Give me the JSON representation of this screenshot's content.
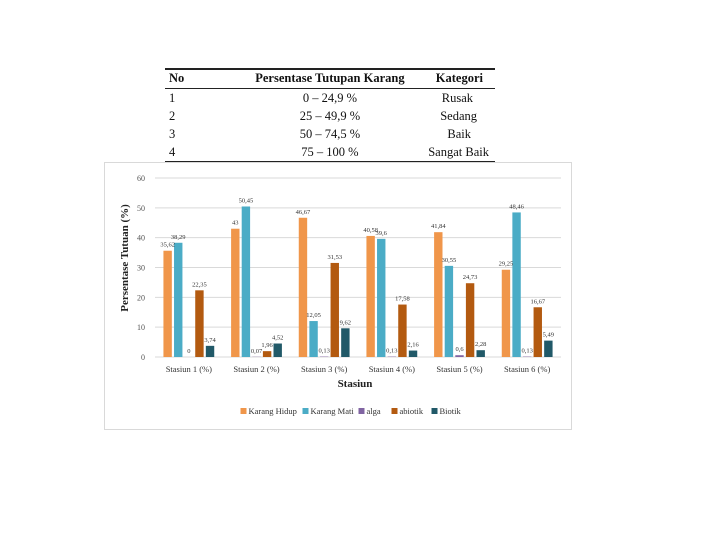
{
  "table": {
    "headers": [
      "No",
      "Persentase Tutupan Karang",
      "Kategori"
    ],
    "rows": [
      [
        "1",
        "0 – 24,9 %",
        "Rusak"
      ],
      [
        "2",
        "25 – 49,9 %",
        "Sedang"
      ],
      [
        "3",
        "50 – 74,5 %",
        "Baik"
      ],
      [
        "4",
        "75 – 100 %",
        "Sangat Baik"
      ]
    ]
  },
  "chart_data": {
    "type": "bar",
    "title": "",
    "xlabel": "Stasiun",
    "ylabel": "Persentase Tutuan (%)",
    "ylim": [
      0,
      60
    ],
    "yticks": [
      "0",
      "10",
      "20",
      "30",
      "40",
      "50",
      "60"
    ],
    "grid": true,
    "legend_position": "bottom",
    "categories": [
      "Stasiun 1 (%)",
      "Stasiun 2 (%)",
      "Stasiun 3 (%)",
      "Stasiun 4 (%)",
      "Stasiun 5 (%)",
      "Stasiun 6 (%)"
    ],
    "series": [
      {
        "name": "Karang Hidup",
        "color": "#f0964a",
        "values": [
          35.62,
          43,
          46.67,
          40.58,
          41.84,
          29.25
        ],
        "labels": [
          "35,62",
          "43",
          "46,67",
          "40,58",
          "41,84",
          "29,25"
        ]
      },
      {
        "name": "Karang Mati",
        "color": "#4bacc6",
        "values": [
          38.29,
          50.45,
          12.05,
          39.6,
          30.55,
          48.46
        ],
        "labels": [
          "38,29",
          "50,45",
          "12,05",
          "39,6",
          "30,55",
          "48,46"
        ]
      },
      {
        "name": "alga",
        "color": "#8064a2",
        "values": [
          0,
          0.07,
          0.13,
          0.13,
          0.6,
          0.13
        ],
        "labels": [
          "0",
          "0,07",
          "0,13",
          "0,13",
          "0,6",
          "0,13"
        ]
      },
      {
        "name": "abiotik",
        "color": "#b35a10",
        "values": [
          22.35,
          1.96,
          31.53,
          17.58,
          24.73,
          16.67
        ],
        "labels": [
          "22,35",
          "1,96",
          "31,53",
          "17,58",
          "24,73",
          "16,67"
        ]
      },
      {
        "name": "Biotik",
        "color": "#215968",
        "values": [
          3.74,
          4.52,
          9.62,
          2.16,
          2.28,
          5.49
        ],
        "labels": [
          "3,74",
          "4,52",
          "9,62",
          "2,16",
          "2,28",
          "5,49"
        ]
      }
    ]
  }
}
